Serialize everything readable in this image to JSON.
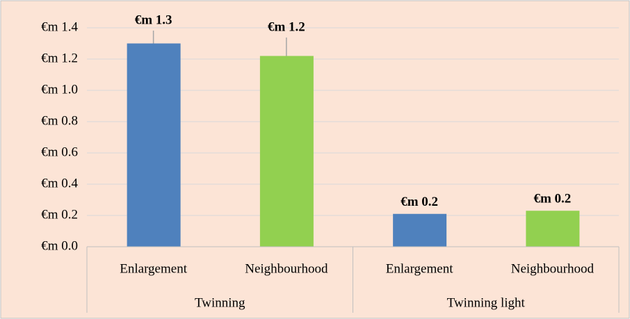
{
  "chart_data": {
    "type": "bar",
    "groups": [
      {
        "name": "Twinning",
        "categories": [
          "Enlargement",
          "Neighbourhood"
        ],
        "values": [
          1.3,
          1.22
        ],
        "value_labels": [
          "€m 1.3",
          "€m 1.2"
        ]
      },
      {
        "name": "Twinning light",
        "categories": [
          "Enlargement",
          "Neighbourhood"
        ],
        "values": [
          0.21,
          0.23
        ],
        "value_labels": [
          "€m 0.2",
          "€m 0.2"
        ]
      }
    ],
    "colors": [
      "#4f81bd",
      "#92d050"
    ],
    "ylim": [
      0,
      1.4
    ],
    "yticks": [
      {
        "value": 0,
        "label": "€m 0.0"
      },
      {
        "value": 0.2,
        "label": "€m 0.2"
      },
      {
        "value": 0.4,
        "label": "€m 0.4"
      },
      {
        "value": 0.6,
        "label": "€m 0.6"
      },
      {
        "value": 0.8,
        "label": "€m 0.8"
      },
      {
        "value": 1.0,
        "label": "€m 1.0"
      },
      {
        "value": 1.2,
        "label": "€m 1.2"
      },
      {
        "value": 1.4,
        "label": "€m 1.4"
      }
    ],
    "grid": true
  }
}
